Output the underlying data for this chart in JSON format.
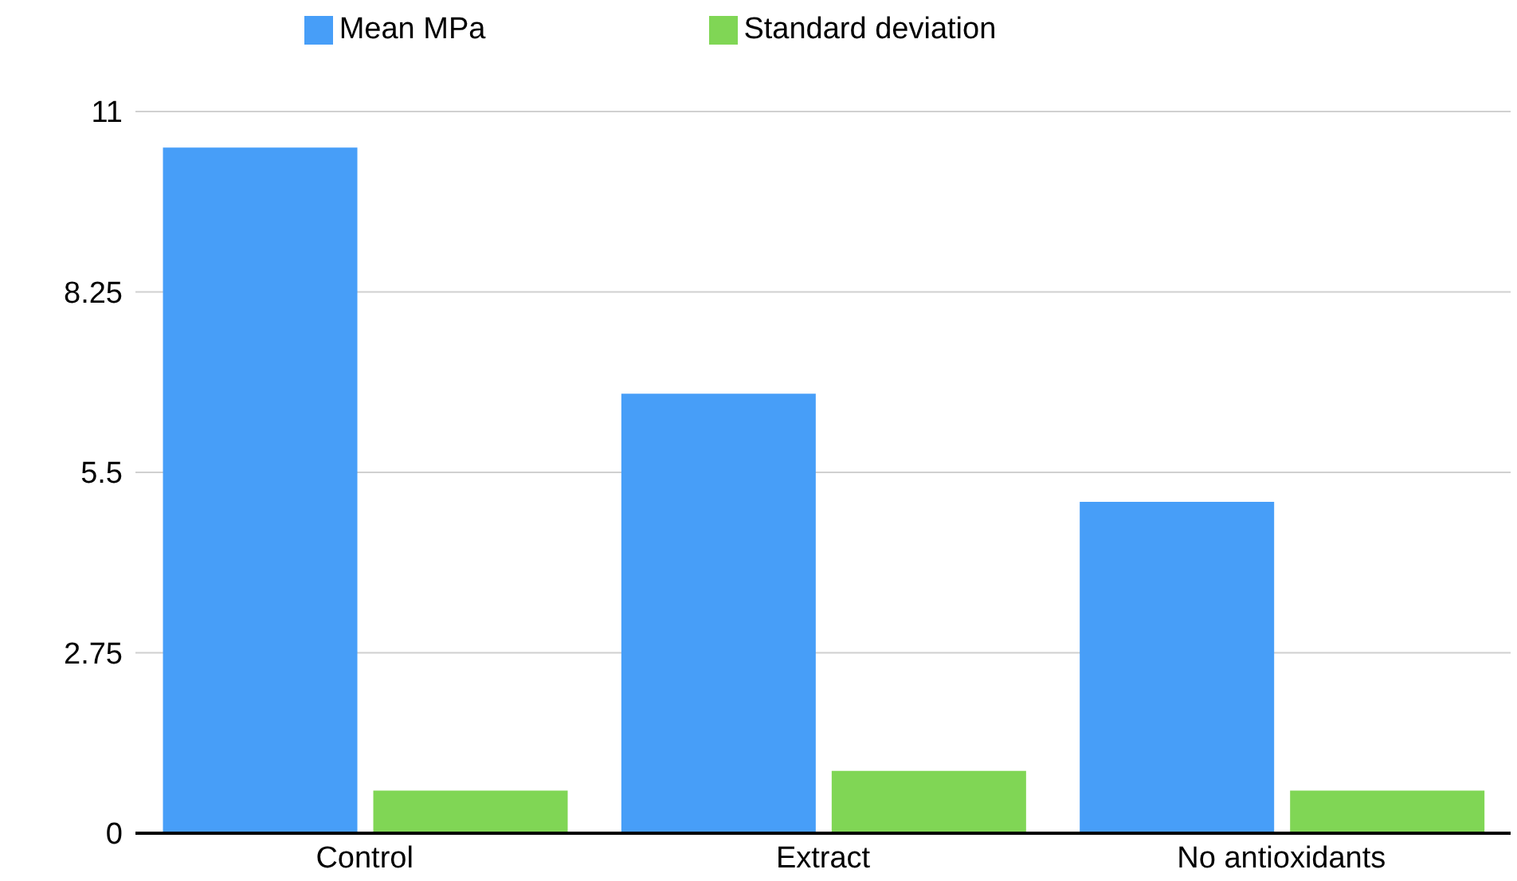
{
  "chart_data": {
    "type": "bar",
    "categories": [
      "Control",
      "Extract",
      "No antioxidants"
    ],
    "series": [
      {
        "name": "Mean MPa",
        "color": "#479ef8",
        "values": [
          10.45,
          6.7,
          5.05
        ]
      },
      {
        "name": "Standard deviation",
        "color": "#80d655",
        "values": [
          0.65,
          0.95,
          0.65
        ]
      }
    ],
    "ylim": [
      0,
      11
    ],
    "yticks": [
      0,
      2.75,
      5.5,
      8.25,
      11
    ],
    "grid": "y",
    "legend": "top"
  }
}
